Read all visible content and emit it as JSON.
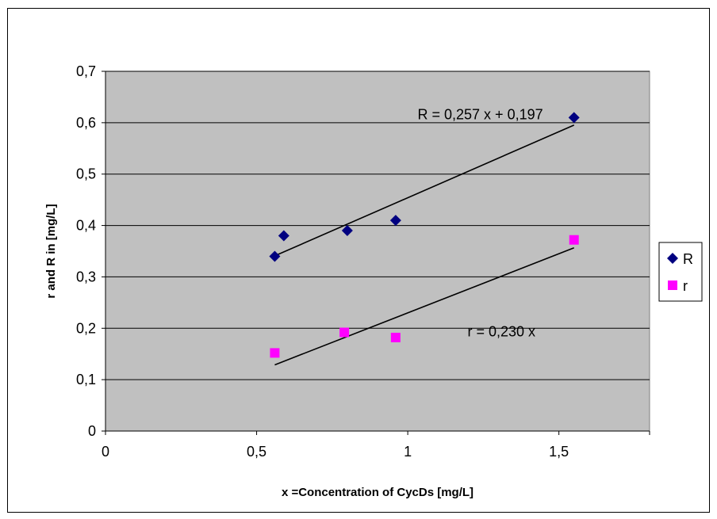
{
  "chart_data": {
    "type": "scatter",
    "xlabel": "x =Concentration of CycDs [mg/L]",
    "ylabel": "r and R in [mg/L]",
    "xlim": [
      0,
      1.8
    ],
    "ylim": [
      0,
      0.7
    ],
    "x_ticks": [
      0,
      0.5,
      1,
      1.5
    ],
    "x_tick_labels": [
      "0",
      "0,5",
      "1",
      "1,5"
    ],
    "y_ticks": [
      0,
      0.1,
      0.2,
      0.3,
      0.4,
      0.5,
      0.6,
      0.7
    ],
    "y_tick_labels": [
      "0",
      "0,1",
      "0,2",
      "0,3",
      "0,4",
      "0,5",
      "0,6",
      "0,7"
    ],
    "grid": "horizontal",
    "plot_background": "#c0c0c0",
    "legend_position": "right",
    "series": [
      {
        "name": "R",
        "marker": "diamond",
        "color": "#000080",
        "x": [
          0.56,
          0.59,
          0.8,
          0.96,
          1.55
        ],
        "y": [
          0.34,
          0.38,
          0.39,
          0.41,
          0.61
        ],
        "trendline": {
          "slope": 0.257,
          "intercept": 0.197,
          "x_range": [
            0.56,
            1.55
          ]
        }
      },
      {
        "name": "r",
        "marker": "square",
        "color": "#ff00ff",
        "x": [
          0.56,
          0.79,
          0.96,
          1.55
        ],
        "y": [
          0.152,
          0.192,
          0.182,
          0.372
        ],
        "trendline": {
          "slope": 0.23,
          "intercept": 0,
          "x_range": [
            0.56,
            1.55
          ]
        }
      }
    ],
    "annotations": [
      {
        "text": "R = 0,257 x + 0,197",
        "x": 1.24,
        "y": 0.607
      },
      {
        "text": "r = 0,230 x",
        "x": 1.31,
        "y": 0.184
      }
    ]
  }
}
